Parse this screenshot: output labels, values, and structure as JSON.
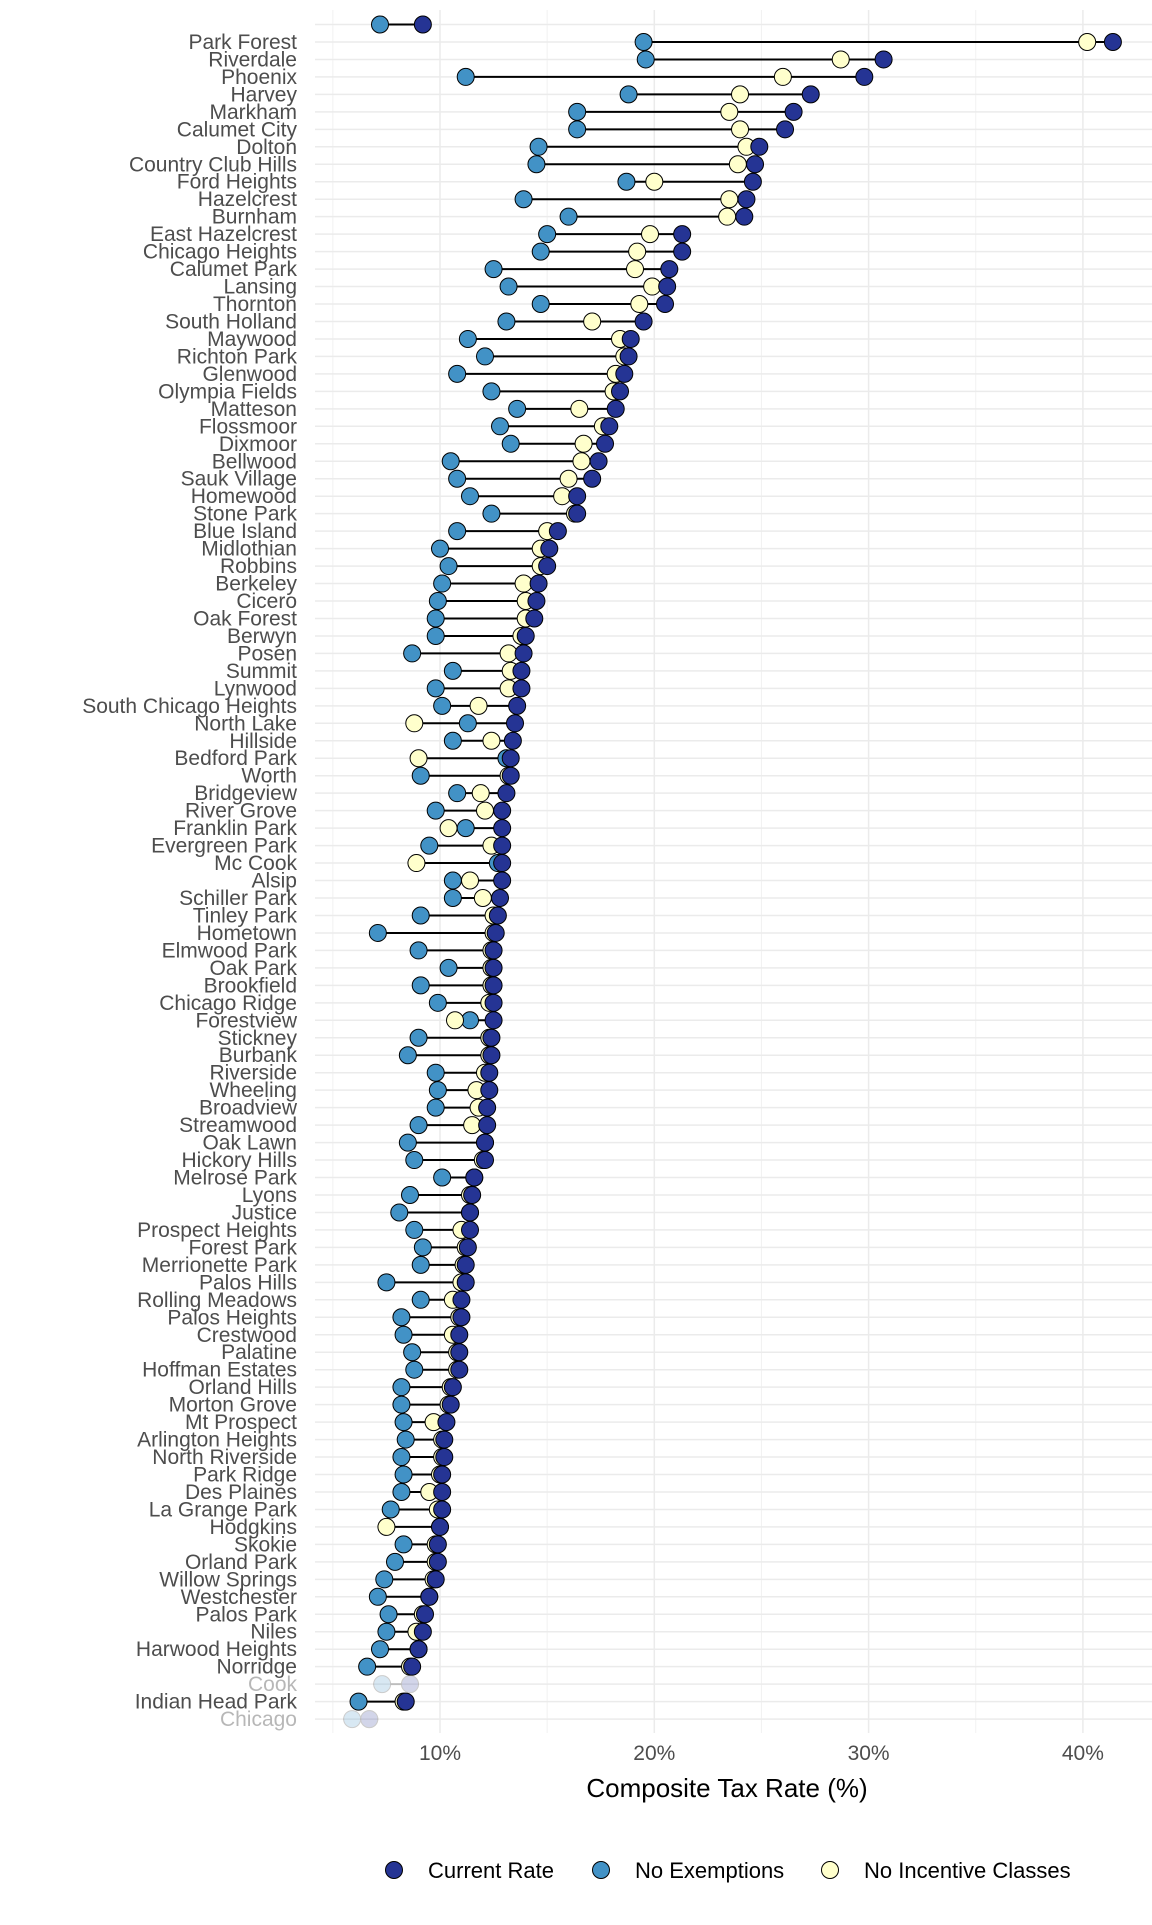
{
  "chart_data": {
    "type": "dot-range",
    "xlabel": "Composite Tax Rate (%)",
    "ylabel": "",
    "xlim": [
      4.2,
      43.2
    ],
    "xticks": [
      10,
      20,
      30,
      40
    ],
    "xtick_labels": [
      "10%",
      "20%",
      "30%",
      "40%"
    ],
    "grid": true,
    "legend_position": "bottom",
    "series": [
      {
        "key": "current",
        "name": "Current Rate",
        "color": "#253494"
      },
      {
        "key": "no_exemptions",
        "name": "No Exemptions",
        "color": "#4292c6"
      },
      {
        "key": "no_incentive",
        "name": "No Incentive Classes",
        "color": "#ffffcc"
      }
    ],
    "faded": [
      "Cook",
      "Chicago"
    ],
    "rows": [
      {
        "label": "",
        "current": 9.2,
        "no_exemptions": 7.2,
        "no_incentive": null
      },
      {
        "label": "Park Forest",
        "current": 41.4,
        "no_exemptions": 19.5,
        "no_incentive": 40.2
      },
      {
        "label": "Riverdale",
        "current": 30.7,
        "no_exemptions": 19.6,
        "no_incentive": 28.7
      },
      {
        "label": "Phoenix",
        "current": 29.8,
        "no_exemptions": 11.2,
        "no_incentive": 26.0
      },
      {
        "label": "Harvey",
        "current": 27.3,
        "no_exemptions": 18.8,
        "no_incentive": 24.0
      },
      {
        "label": "Markham",
        "current": 26.5,
        "no_exemptions": 16.4,
        "no_incentive": 23.5
      },
      {
        "label": "Calumet City",
        "current": 26.1,
        "no_exemptions": 16.4,
        "no_incentive": 24.0
      },
      {
        "label": "Dolton",
        "current": 24.9,
        "no_exemptions": 14.6,
        "no_incentive": 24.3
      },
      {
        "label": "Country Club Hills",
        "current": 24.7,
        "no_exemptions": 14.5,
        "no_incentive": 23.9
      },
      {
        "label": "Ford Heights",
        "current": 24.6,
        "no_exemptions": 18.7,
        "no_incentive": 20.0
      },
      {
        "label": "Hazelcrest",
        "current": 24.3,
        "no_exemptions": 13.9,
        "no_incentive": 23.5
      },
      {
        "label": "Burnham",
        "current": 24.2,
        "no_exemptions": 16.0,
        "no_incentive": 23.4
      },
      {
        "label": "East Hazelcrest",
        "current": 21.3,
        "no_exemptions": 15.0,
        "no_incentive": 19.8
      },
      {
        "label": "Chicago Heights",
        "current": 21.3,
        "no_exemptions": 14.7,
        "no_incentive": 19.2
      },
      {
        "label": "Calumet Park",
        "current": 20.7,
        "no_exemptions": 12.5,
        "no_incentive": 19.1
      },
      {
        "label": "Lansing",
        "current": 20.6,
        "no_exemptions": 13.2,
        "no_incentive": 19.9
      },
      {
        "label": "Thornton",
        "current": 20.5,
        "no_exemptions": 14.7,
        "no_incentive": 19.3
      },
      {
        "label": "South Holland",
        "current": 19.5,
        "no_exemptions": 13.1,
        "no_incentive": 17.1
      },
      {
        "label": "Maywood",
        "current": 18.9,
        "no_exemptions": 11.3,
        "no_incentive": 18.4
      },
      {
        "label": "Richton Park",
        "current": 18.8,
        "no_exemptions": 12.1,
        "no_incentive": 18.6
      },
      {
        "label": "Glenwood",
        "current": 18.6,
        "no_exemptions": 10.8,
        "no_incentive": 18.2
      },
      {
        "label": "Olympia Fields",
        "current": 18.4,
        "no_exemptions": 12.4,
        "no_incentive": 18.1
      },
      {
        "label": "Matteson",
        "current": 18.2,
        "no_exemptions": 13.6,
        "no_incentive": 16.5
      },
      {
        "label": "Flossmoor",
        "current": 17.9,
        "no_exemptions": 12.8,
        "no_incentive": 17.6
      },
      {
        "label": "Dixmoor",
        "current": 17.7,
        "no_exemptions": 13.3,
        "no_incentive": 16.7
      },
      {
        "label": "Bellwood",
        "current": 17.4,
        "no_exemptions": 10.5,
        "no_incentive": 16.6
      },
      {
        "label": "Sauk Village",
        "current": 17.1,
        "no_exemptions": 10.8,
        "no_incentive": 16.0
      },
      {
        "label": "Homewood",
        "current": 16.4,
        "no_exemptions": 11.4,
        "no_incentive": 15.7
      },
      {
        "label": "Stone Park",
        "current": 16.4,
        "no_exemptions": 12.4,
        "no_incentive": 16.3
      },
      {
        "label": "Blue Island",
        "current": 15.5,
        "no_exemptions": 10.8,
        "no_incentive": 15.0
      },
      {
        "label": "Midlothian",
        "current": 15.1,
        "no_exemptions": 10.0,
        "no_incentive": 14.7
      },
      {
        "label": "Robbins",
        "current": 15.0,
        "no_exemptions": 10.4,
        "no_incentive": 14.7
      },
      {
        "label": "Berkeley",
        "current": 14.6,
        "no_exemptions": 10.1,
        "no_incentive": 13.9
      },
      {
        "label": "Cicero",
        "current": 14.5,
        "no_exemptions": 9.9,
        "no_incentive": 14.0
      },
      {
        "label": "Oak Forest",
        "current": 14.4,
        "no_exemptions": 9.8,
        "no_incentive": 14.0
      },
      {
        "label": "Berwyn",
        "current": 14.0,
        "no_exemptions": 9.8,
        "no_incentive": 13.8
      },
      {
        "label": "Posen",
        "current": 13.9,
        "no_exemptions": 8.7,
        "no_incentive": 13.2
      },
      {
        "label": "Summit",
        "current": 13.8,
        "no_exemptions": 10.6,
        "no_incentive": 13.3
      },
      {
        "label": "Lynwood",
        "current": 13.8,
        "no_exemptions": 9.8,
        "no_incentive": 13.2
      },
      {
        "label": "South Chicago Heights",
        "current": 13.6,
        "no_exemptions": 10.1,
        "no_incentive": 11.8
      },
      {
        "label": "North Lake",
        "current": 13.5,
        "no_exemptions": 11.3,
        "no_incentive": 8.8
      },
      {
        "label": "Hillside",
        "current": 13.4,
        "no_exemptions": 10.6,
        "no_incentive": 12.4
      },
      {
        "label": "Bedford Park",
        "current": 13.3,
        "no_exemptions": 13.1,
        "no_incentive": 9.0
      },
      {
        "label": "Worth",
        "current": 13.3,
        "no_exemptions": 9.1,
        "no_incentive": 13.2
      },
      {
        "label": "Bridgeview",
        "current": 13.1,
        "no_exemptions": 10.8,
        "no_incentive": 11.9
      },
      {
        "label": "River Grove",
        "current": 12.9,
        "no_exemptions": 9.8,
        "no_incentive": 12.1
      },
      {
        "label": "Franklin Park",
        "current": 12.9,
        "no_exemptions": 11.2,
        "no_incentive": 10.4
      },
      {
        "label": "Evergreen Park",
        "current": 12.9,
        "no_exemptions": 9.5,
        "no_incentive": 12.4
      },
      {
        "label": "Mc Cook",
        "current": 12.9,
        "no_exemptions": 12.7,
        "no_incentive": 8.9
      },
      {
        "label": "Alsip",
        "current": 12.9,
        "no_exemptions": 10.6,
        "no_incentive": 11.4
      },
      {
        "label": "Schiller Park",
        "current": 12.8,
        "no_exemptions": 10.6,
        "no_incentive": 12.0
      },
      {
        "label": "Tinley Park",
        "current": 12.7,
        "no_exemptions": 9.1,
        "no_incentive": 12.5
      },
      {
        "label": "Hometown",
        "current": 12.6,
        "no_exemptions": 7.1,
        "no_incentive": 12.5
      },
      {
        "label": "Elmwood Park",
        "current": 12.5,
        "no_exemptions": 9.0,
        "no_incentive": 12.4
      },
      {
        "label": "Oak Park",
        "current": 12.5,
        "no_exemptions": 10.4,
        "no_incentive": 12.4
      },
      {
        "label": "Brookfield",
        "current": 12.5,
        "no_exemptions": 9.1,
        "no_incentive": 12.4
      },
      {
        "label": "Chicago Ridge",
        "current": 12.5,
        "no_exemptions": 9.9,
        "no_incentive": 12.3
      },
      {
        "label": "Forestview",
        "current": 12.5,
        "no_exemptions": 11.4,
        "no_incentive": 10.7
      },
      {
        "label": "Stickney",
        "current": 12.4,
        "no_exemptions": 9.0,
        "no_incentive": 12.3
      },
      {
        "label": "Burbank",
        "current": 12.4,
        "no_exemptions": 8.5,
        "no_incentive": 12.3
      },
      {
        "label": "Riverside",
        "current": 12.3,
        "no_exemptions": 9.8,
        "no_incentive": 12.1
      },
      {
        "label": "Wheeling",
        "current": 12.3,
        "no_exemptions": 9.9,
        "no_incentive": 11.7
      },
      {
        "label": "Broadview",
        "current": 12.2,
        "no_exemptions": 9.8,
        "no_incentive": 11.8
      },
      {
        "label": "Streamwood",
        "current": 12.2,
        "no_exemptions": 9.0,
        "no_incentive": 11.5
      },
      {
        "label": "Oak Lawn",
        "current": 12.1,
        "no_exemptions": 8.5,
        "no_incentive": 12.1
      },
      {
        "label": "Hickory Hills",
        "current": 12.1,
        "no_exemptions": 8.8,
        "no_incentive": 12.0
      },
      {
        "label": "Melrose Park",
        "current": 11.6,
        "no_exemptions": 10.1,
        "no_incentive": 11.6
      },
      {
        "label": "Lyons",
        "current": 11.5,
        "no_exemptions": 8.6,
        "no_incentive": 11.4
      },
      {
        "label": "Justice",
        "current": 11.4,
        "no_exemptions": 8.1,
        "no_incentive": 11.4
      },
      {
        "label": "Prospect Heights",
        "current": 11.4,
        "no_exemptions": 8.8,
        "no_incentive": 11.0
      },
      {
        "label": "Forest Park",
        "current": 11.3,
        "no_exemptions": 9.2,
        "no_incentive": 11.2
      },
      {
        "label": "Merrionette Park",
        "current": 11.2,
        "no_exemptions": 9.1,
        "no_incentive": 11.1
      },
      {
        "label": "Palos Hills",
        "current": 11.2,
        "no_exemptions": 7.5,
        "no_incentive": 11.0
      },
      {
        "label": "Rolling Meadows",
        "current": 11.0,
        "no_exemptions": 9.1,
        "no_incentive": 10.6
      },
      {
        "label": "Palos Heights",
        "current": 11.0,
        "no_exemptions": 8.2,
        "no_incentive": 10.9
      },
      {
        "label": "Crestwood",
        "current": 10.9,
        "no_exemptions": 8.3,
        "no_incentive": 10.6
      },
      {
        "label": "Palatine",
        "current": 10.9,
        "no_exemptions": 8.7,
        "no_incentive": 10.8
      },
      {
        "label": "Hoffman Estates",
        "current": 10.9,
        "no_exemptions": 8.8,
        "no_incentive": 10.8
      },
      {
        "label": "Orland Hills",
        "current": 10.6,
        "no_exemptions": 8.2,
        "no_incentive": 10.5
      },
      {
        "label": "Morton Grove",
        "current": 10.5,
        "no_exemptions": 8.2,
        "no_incentive": 10.4
      },
      {
        "label": "Mt Prospect",
        "current": 10.3,
        "no_exemptions": 8.3,
        "no_incentive": 9.7
      },
      {
        "label": "Arlington Heights",
        "current": 10.2,
        "no_exemptions": 8.4,
        "no_incentive": 10.1
      },
      {
        "label": "North Riverside",
        "current": 10.2,
        "no_exemptions": 8.2,
        "no_incentive": 10.1
      },
      {
        "label": "Park Ridge",
        "current": 10.1,
        "no_exemptions": 8.3,
        "no_incentive": 10.0
      },
      {
        "label": "Des Plaines",
        "current": 10.1,
        "no_exemptions": 8.2,
        "no_incentive": 9.5
      },
      {
        "label": "La Grange Park",
        "current": 10.1,
        "no_exemptions": 7.7,
        "no_incentive": 9.9
      },
      {
        "label": "Hodgkins",
        "current": 10.0,
        "no_exemptions": 10.0,
        "no_incentive": 7.5
      },
      {
        "label": "Skokie",
        "current": 9.9,
        "no_exemptions": 8.3,
        "no_incentive": 9.8
      },
      {
        "label": "Orland Park",
        "current": 9.9,
        "no_exemptions": 7.9,
        "no_incentive": 9.8
      },
      {
        "label": "Willow Springs",
        "current": 9.8,
        "no_exemptions": 7.4,
        "no_incentive": 9.7
      },
      {
        "label": "Westchester",
        "current": 9.5,
        "no_exemptions": 7.1,
        "no_incentive": 9.5
      },
      {
        "label": "Palos Park",
        "current": 9.3,
        "no_exemptions": 7.6,
        "no_incentive": 9.2
      },
      {
        "label": "Niles",
        "current": 9.2,
        "no_exemptions": 7.5,
        "no_incentive": 8.9
      },
      {
        "label": "Harwood Heights",
        "current": 9.0,
        "no_exemptions": 7.2,
        "no_incentive": 9.0
      },
      {
        "label": "Norridge",
        "current": 8.7,
        "no_exemptions": 6.6,
        "no_incentive": 8.6
      },
      {
        "label": "Cook",
        "current": 8.6,
        "no_exemptions": 7.3,
        "no_incentive": 8.6
      },
      {
        "label": "Indian Head Park",
        "current": 8.4,
        "no_exemptions": 6.2,
        "no_incentive": 8.3
      },
      {
        "label": "Chicago",
        "current": 6.7,
        "no_exemptions": 5.9,
        "no_incentive": 6.7
      }
    ]
  }
}
